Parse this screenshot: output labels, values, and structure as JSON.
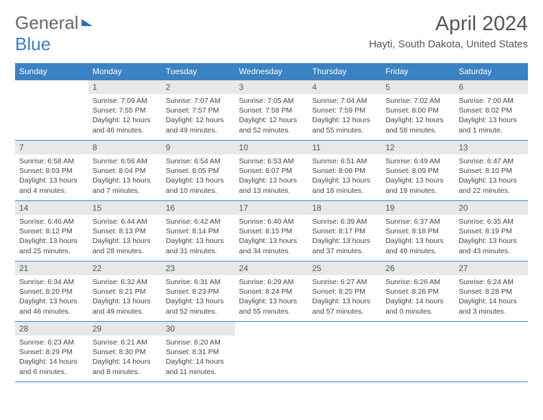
{
  "logo": {
    "part1": "General",
    "part2": "Blue"
  },
  "title": "April 2024",
  "location": "Hayti, South Dakota, United States",
  "weekdays": [
    "Sunday",
    "Monday",
    "Tuesday",
    "Wednesday",
    "Thursday",
    "Friday",
    "Saturday"
  ],
  "colors": {
    "header_bg": "#3b82c4",
    "daynum_bg": "#e8e8e8",
    "border": "#3b82c4",
    "logo_gray": "#666",
    "logo_blue": "#3b7fc4"
  },
  "layout": {
    "start_weekday": 1,
    "days_in_month": 30
  },
  "days": [
    {
      "n": 1,
      "sunrise": "7:09 AM",
      "sunset": "7:55 PM",
      "daylight": "12 hours and 46 minutes."
    },
    {
      "n": 2,
      "sunrise": "7:07 AM",
      "sunset": "7:57 PM",
      "daylight": "12 hours and 49 minutes."
    },
    {
      "n": 3,
      "sunrise": "7:05 AM",
      "sunset": "7:58 PM",
      "daylight": "12 hours and 52 minutes."
    },
    {
      "n": 4,
      "sunrise": "7:04 AM",
      "sunset": "7:59 PM",
      "daylight": "12 hours and 55 minutes."
    },
    {
      "n": 5,
      "sunrise": "7:02 AM",
      "sunset": "8:00 PM",
      "daylight": "12 hours and 58 minutes."
    },
    {
      "n": 6,
      "sunrise": "7:00 AM",
      "sunset": "8:02 PM",
      "daylight": "13 hours and 1 minute."
    },
    {
      "n": 7,
      "sunrise": "6:58 AM",
      "sunset": "8:03 PM",
      "daylight": "13 hours and 4 minutes."
    },
    {
      "n": 8,
      "sunrise": "6:56 AM",
      "sunset": "8:04 PM",
      "daylight": "13 hours and 7 minutes."
    },
    {
      "n": 9,
      "sunrise": "6:54 AM",
      "sunset": "8:05 PM",
      "daylight": "13 hours and 10 minutes."
    },
    {
      "n": 10,
      "sunrise": "6:53 AM",
      "sunset": "8:07 PM",
      "daylight": "13 hours and 13 minutes."
    },
    {
      "n": 11,
      "sunrise": "6:51 AM",
      "sunset": "8:08 PM",
      "daylight": "13 hours and 16 minutes."
    },
    {
      "n": 12,
      "sunrise": "6:49 AM",
      "sunset": "8:09 PM",
      "daylight": "13 hours and 19 minutes."
    },
    {
      "n": 13,
      "sunrise": "6:47 AM",
      "sunset": "8:10 PM",
      "daylight": "13 hours and 22 minutes."
    },
    {
      "n": 14,
      "sunrise": "6:46 AM",
      "sunset": "8:12 PM",
      "daylight": "13 hours and 25 minutes."
    },
    {
      "n": 15,
      "sunrise": "6:44 AM",
      "sunset": "8:13 PM",
      "daylight": "13 hours and 28 minutes."
    },
    {
      "n": 16,
      "sunrise": "6:42 AM",
      "sunset": "8:14 PM",
      "daylight": "13 hours and 31 minutes."
    },
    {
      "n": 17,
      "sunrise": "6:40 AM",
      "sunset": "8:15 PM",
      "daylight": "13 hours and 34 minutes."
    },
    {
      "n": 18,
      "sunrise": "6:39 AM",
      "sunset": "8:17 PM",
      "daylight": "13 hours and 37 minutes."
    },
    {
      "n": 19,
      "sunrise": "6:37 AM",
      "sunset": "8:18 PM",
      "daylight": "13 hours and 40 minutes."
    },
    {
      "n": 20,
      "sunrise": "6:35 AM",
      "sunset": "8:19 PM",
      "daylight": "13 hours and 43 minutes."
    },
    {
      "n": 21,
      "sunrise": "6:34 AM",
      "sunset": "8:20 PM",
      "daylight": "13 hours and 46 minutes."
    },
    {
      "n": 22,
      "sunrise": "6:32 AM",
      "sunset": "8:21 PM",
      "daylight": "13 hours and 49 minutes."
    },
    {
      "n": 23,
      "sunrise": "6:31 AM",
      "sunset": "8:23 PM",
      "daylight": "13 hours and 52 minutes."
    },
    {
      "n": 24,
      "sunrise": "6:29 AM",
      "sunset": "8:24 PM",
      "daylight": "13 hours and 55 minutes."
    },
    {
      "n": 25,
      "sunrise": "6:27 AM",
      "sunset": "8:25 PM",
      "daylight": "13 hours and 57 minutes."
    },
    {
      "n": 26,
      "sunrise": "6:26 AM",
      "sunset": "8:26 PM",
      "daylight": "14 hours and 0 minutes."
    },
    {
      "n": 27,
      "sunrise": "6:24 AM",
      "sunset": "8:28 PM",
      "daylight": "14 hours and 3 minutes."
    },
    {
      "n": 28,
      "sunrise": "6:23 AM",
      "sunset": "8:29 PM",
      "daylight": "14 hours and 6 minutes."
    },
    {
      "n": 29,
      "sunrise": "6:21 AM",
      "sunset": "8:30 PM",
      "daylight": "14 hours and 8 minutes."
    },
    {
      "n": 30,
      "sunrise": "6:20 AM",
      "sunset": "8:31 PM",
      "daylight": "14 hours and 11 minutes."
    }
  ],
  "labels": {
    "sunrise": "Sunrise:",
    "sunset": "Sunset:",
    "daylight": "Daylight:"
  }
}
